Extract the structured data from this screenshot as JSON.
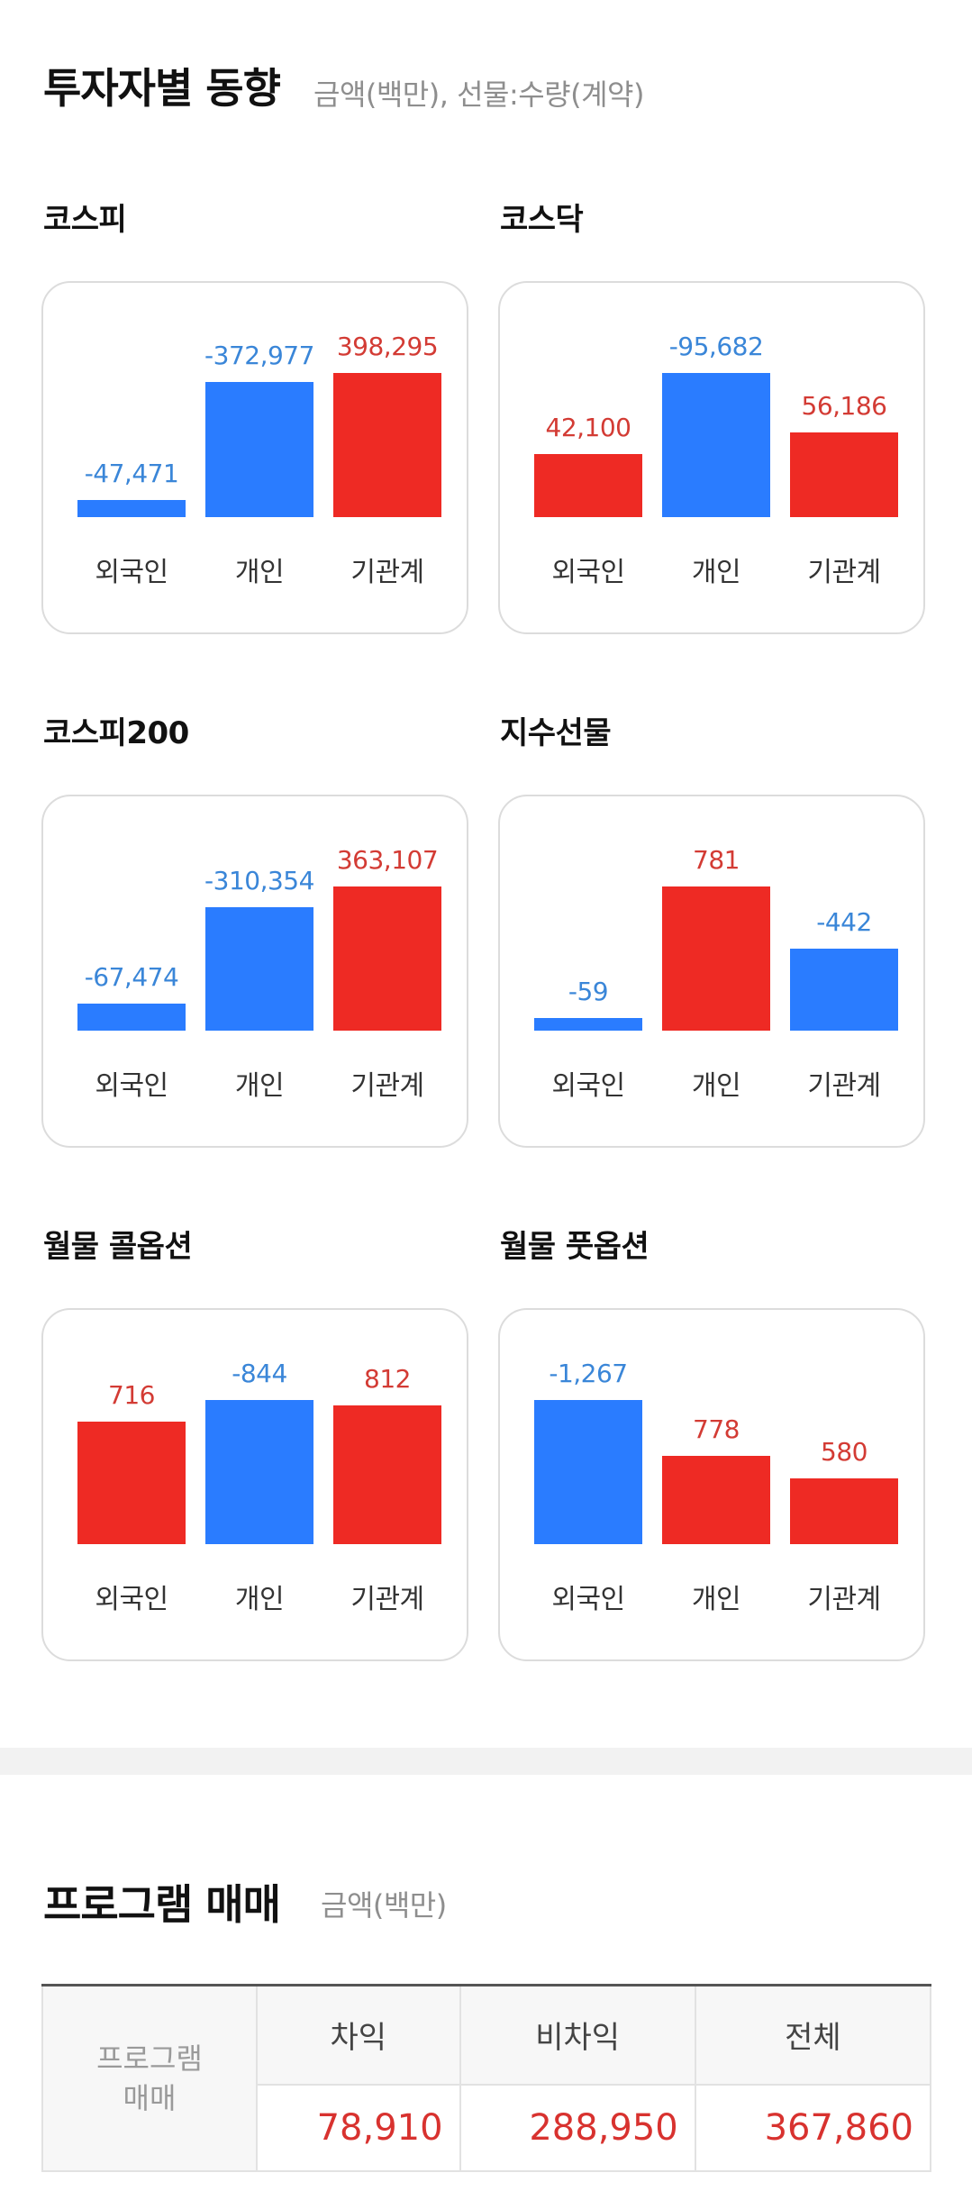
{
  "investor": {
    "title": "투자자별 동향",
    "subtitle": "금액(백만), 선물:수량(계약)",
    "colors": {
      "positive": "#ee2a24",
      "negative": "#2a7cff",
      "positive_text": "#d33b34",
      "negative_text": "#3a86d8"
    },
    "cards": [
      {
        "label": "코스피",
        "categories": [
          "외국인",
          "개인",
          "기관계"
        ],
        "values": [
          -47471,
          -372977,
          398295
        ],
        "value_labels": [
          "-47,471",
          "-372,977",
          "398,295"
        ]
      },
      {
        "label": "코스닥",
        "categories": [
          "외국인",
          "개인",
          "기관계"
        ],
        "values": [
          42100,
          -95682,
          56186
        ],
        "value_labels": [
          "42,100",
          "-95,682",
          "56,186"
        ]
      },
      {
        "label": "코스피200",
        "categories": [
          "외국인",
          "개인",
          "기관계"
        ],
        "values": [
          -67474,
          -310354,
          363107
        ],
        "value_labels": [
          "-67,474",
          "-310,354",
          "363,107"
        ]
      },
      {
        "label": "지수선물",
        "categories": [
          "외국인",
          "개인",
          "기관계"
        ],
        "values": [
          -59,
          781,
          -442
        ],
        "value_labels": [
          "-59",
          "781",
          "-442"
        ]
      },
      {
        "label": "월물 콜옵션",
        "categories": [
          "외국인",
          "개인",
          "기관계"
        ],
        "values": [
          716,
          -844,
          812
        ],
        "value_labels": [
          "716",
          "-844",
          "812"
        ]
      },
      {
        "label": "월물 풋옵션",
        "categories": [
          "외국인",
          "개인",
          "기관계"
        ],
        "values": [
          -1267,
          778,
          580
        ],
        "value_labels": [
          "-1,267",
          "778",
          "580"
        ]
      }
    ]
  },
  "program": {
    "title": "프로그램 매매",
    "subtitle": "금액(백만)",
    "row_header": "프로그램\n매매",
    "columns": [
      "차익",
      "비차익",
      "전체"
    ],
    "values": [
      "78,910",
      "288,950",
      "367,860"
    ]
  }
}
